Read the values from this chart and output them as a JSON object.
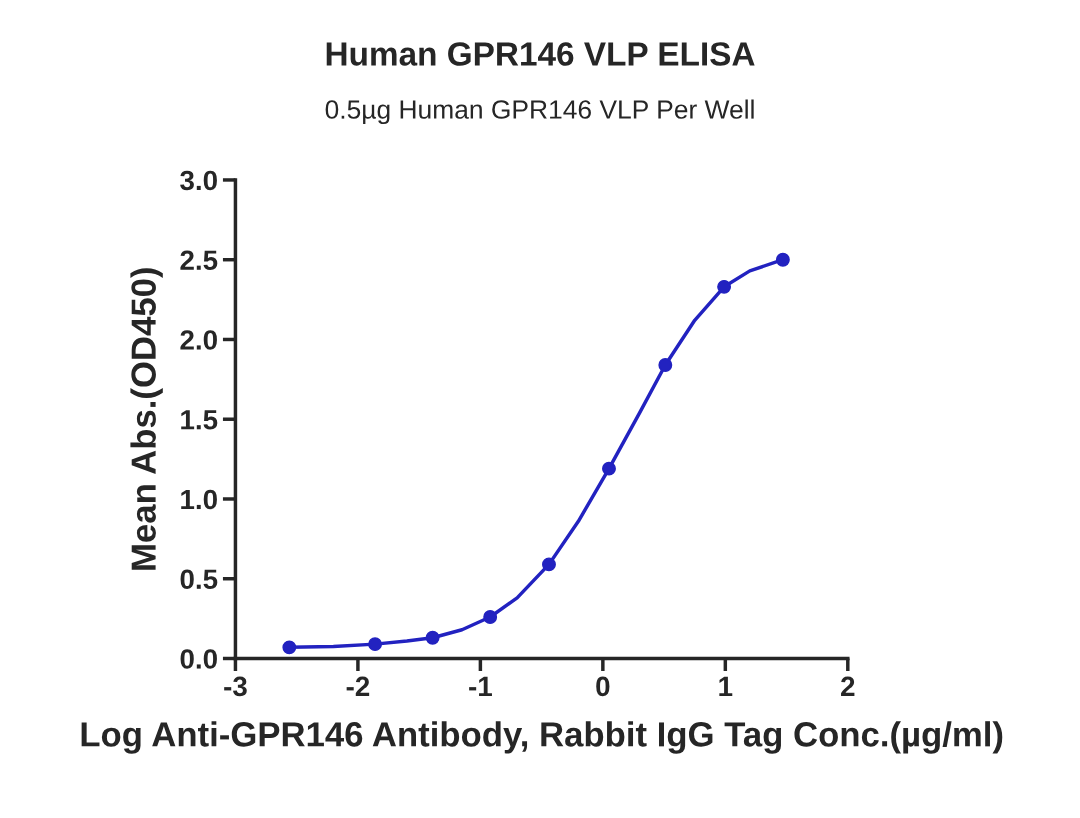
{
  "chart_data": {
    "type": "line",
    "title": "Human GPR146 VLP ELISA",
    "subtitle": "0.5µg Human GPR146 VLP Per Well",
    "xlabel": "Log Anti-GPR146 Antibody, Rabbit IgG Tag Conc.(µg/ml)",
    "ylabel": "Mean Abs.(OD450)",
    "x": [
      -2.56,
      -1.86,
      -1.39,
      -0.92,
      -0.44,
      0.05,
      0.51,
      0.99,
      1.47
    ],
    "series": [
      {
        "type": "scatter",
        "marker": "circle",
        "color": "#2222c0",
        "values": [
          0.07,
          0.09,
          0.13,
          0.26,
          0.59,
          1.19,
          1.84,
          2.33,
          2.5
        ]
      },
      {
        "marker": "none",
        "color": "#2222c0",
        "x": [
          -2.56,
          -2.2,
          -1.86,
          -1.6,
          -1.39,
          -1.15,
          -0.92,
          -0.7,
          -0.44,
          -0.2,
          0.05,
          0.3,
          0.51,
          0.75,
          0.99,
          1.2,
          1.47
        ],
        "values": [
          0.07,
          0.075,
          0.09,
          0.11,
          0.13,
          0.18,
          0.26,
          0.38,
          0.59,
          0.86,
          1.19,
          1.54,
          1.84,
          2.12,
          2.33,
          2.43,
          2.5
        ]
      }
    ],
    "xlim": [
      -3,
      2
    ],
    "xticks": [
      -3,
      -2,
      -1,
      0,
      1,
      2
    ],
    "ylim": [
      0,
      3
    ],
    "yticks": [
      {
        "value": 0,
        "label": "0.0"
      },
      {
        "value": 0.5,
        "label": "0.5"
      },
      {
        "value": 1,
        "label": "1.0"
      },
      {
        "value": 1.5,
        "label": "1.5"
      },
      {
        "value": 2,
        "label": "2.0"
      },
      {
        "value": 2.5,
        "label": "2.5"
      },
      {
        "value": 3,
        "label": "3.0"
      }
    ],
    "grid": false,
    "legend": false,
    "line_style": "solid"
  }
}
